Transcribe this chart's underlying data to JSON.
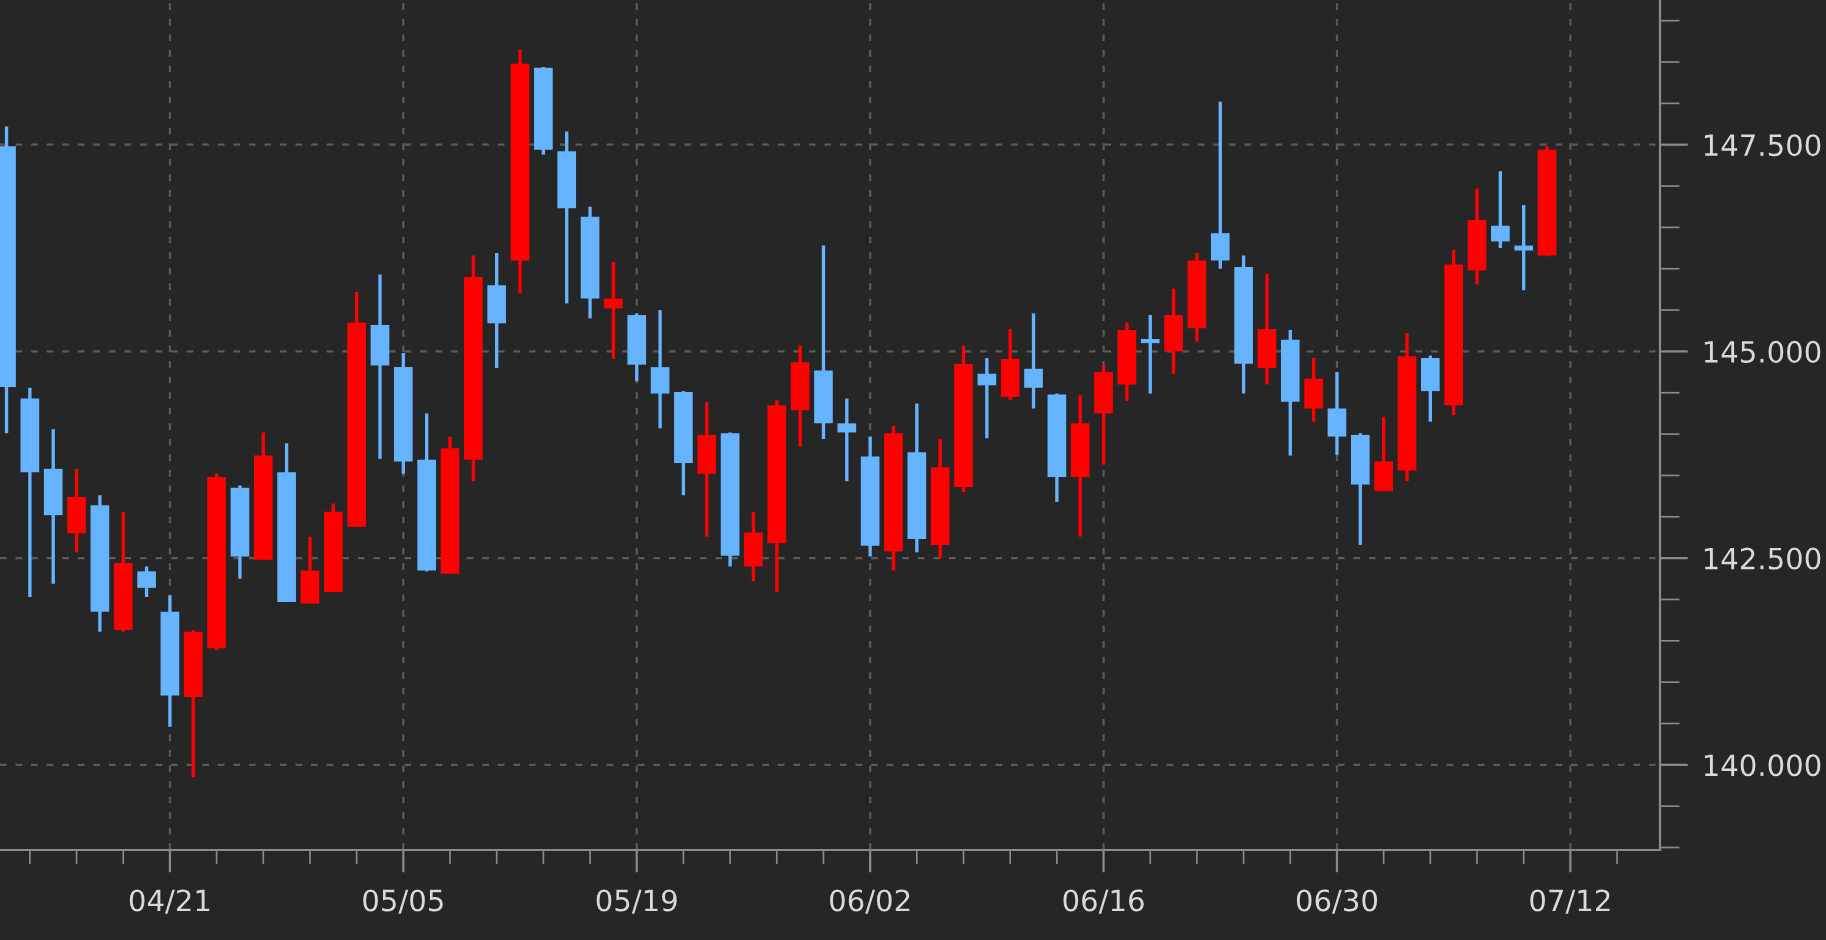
{
  "chart_data": {
    "type": "candlestick",
    "categories": [
      null,
      null,
      null,
      null,
      null,
      null,
      null,
      "04/21",
      null,
      null,
      null,
      null,
      null,
      null,
      null,
      null,
      null,
      "05/05",
      null,
      null,
      null,
      null,
      null,
      null,
      null,
      null,
      null,
      "05/19",
      null,
      null,
      null,
      null,
      null,
      null,
      null,
      null,
      null,
      "06/02",
      null,
      null,
      null,
      null,
      null,
      null,
      null,
      null,
      null,
      "06/16",
      null,
      null,
      null,
      null,
      null,
      null,
      null,
      null,
      null,
      "06/30",
      null,
      null,
      null,
      null,
      null,
      null,
      null,
      null,
      null,
      "07/12"
    ],
    "ohlc": [
      [
        147.48,
        147.72,
        144.01,
        144.57
      ],
      [
        144.43,
        144.56,
        142.03,
        143.54
      ],
      [
        143.58,
        144.06,
        142.19,
        143.02
      ],
      [
        142.8,
        143.58,
        142.57,
        143.24
      ],
      [
        143.14,
        143.26,
        141.61,
        141.85
      ],
      [
        141.63,
        143.06,
        141.61,
        142.44
      ],
      [
        142.34,
        142.4,
        142.03,
        142.14
      ],
      [
        141.85,
        142.05,
        140.46,
        140.84
      ],
      [
        140.82,
        141.63,
        139.85,
        141.61
      ],
      [
        141.41,
        143.52,
        141.39,
        143.48
      ],
      [
        143.35,
        143.38,
        142.25,
        142.52
      ],
      [
        142.48,
        144.02,
        142.48,
        143.74
      ],
      [
        143.54,
        143.89,
        141.97,
        141.97
      ],
      [
        141.95,
        142.76,
        141.95,
        142.35
      ],
      [
        142.09,
        143.16,
        142.09,
        143.06
      ],
      [
        142.88,
        145.72,
        142.88,
        145.35
      ],
      [
        145.32,
        145.93,
        143.7,
        144.83
      ],
      [
        144.81,
        144.98,
        143.52,
        143.67
      ],
      [
        143.69,
        144.25,
        142.34,
        142.35
      ],
      [
        142.31,
        143.97,
        142.31,
        143.83
      ],
      [
        143.69,
        146.16,
        143.43,
        145.9
      ],
      [
        145.8,
        146.19,
        144.8,
        145.34
      ],
      [
        146.1,
        148.65,
        145.7,
        148.48
      ],
      [
        148.43,
        148.44,
        147.38,
        147.44
      ],
      [
        147.42,
        147.66,
        145.58,
        146.73
      ],
      [
        146.63,
        146.75,
        145.4,
        145.64
      ],
      [
        145.52,
        146.08,
        144.91,
        145.64
      ],
      [
        145.44,
        145.46,
        144.64,
        144.84
      ],
      [
        144.81,
        145.5,
        144.07,
        144.49
      ],
      [
        144.51,
        144.52,
        143.26,
        143.65
      ],
      [
        143.52,
        144.39,
        142.76,
        143.99
      ],
      [
        144.01,
        144.02,
        142.4,
        142.53
      ],
      [
        142.4,
        143.06,
        142.22,
        142.81
      ],
      [
        142.68,
        144.41,
        142.09,
        144.35
      ],
      [
        144.29,
        145.07,
        143.85,
        144.87
      ],
      [
        144.77,
        146.28,
        143.94,
        144.13
      ],
      [
        144.13,
        144.43,
        143.43,
        144.02
      ],
      [
        143.73,
        143.97,
        142.52,
        142.65
      ],
      [
        142.58,
        144.1,
        142.35,
        144.01
      ],
      [
        143.78,
        144.37,
        142.57,
        142.73
      ],
      [
        142.66,
        143.94,
        142.5,
        143.6
      ],
      [
        143.36,
        145.07,
        143.3,
        144.85
      ],
      [
        144.73,
        144.92,
        143.95,
        144.59
      ],
      [
        144.45,
        145.27,
        144.41,
        144.91
      ],
      [
        144.79,
        145.46,
        144.31,
        144.56
      ],
      [
        144.48,
        144.49,
        143.18,
        143.48
      ],
      [
        143.48,
        144.47,
        142.76,
        144.13
      ],
      [
        144.25,
        144.83,
        143.63,
        144.75
      ],
      [
        144.6,
        145.35,
        144.4,
        145.26
      ],
      [
        145.15,
        145.44,
        144.49,
        145.1
      ],
      [
        145.0,
        145.76,
        144.73,
        145.44
      ],
      [
        145.28,
        146.19,
        145.12,
        146.1
      ],
      [
        146.43,
        148.02,
        146.0,
        146.1
      ],
      [
        146.02,
        146.16,
        144.49,
        144.85
      ],
      [
        144.8,
        145.94,
        144.6,
        145.27
      ],
      [
        145.14,
        145.26,
        143.74,
        144.39
      ],
      [
        144.31,
        144.92,
        144.15,
        144.67
      ],
      [
        144.31,
        144.75,
        143.75,
        143.97
      ],
      [
        143.99,
        144.01,
        142.66,
        143.39
      ],
      [
        143.31,
        144.21,
        143.31,
        143.67
      ],
      [
        143.56,
        145.22,
        143.43,
        144.94
      ],
      [
        144.92,
        144.95,
        144.15,
        144.52
      ],
      [
        144.35,
        146.23,
        144.23,
        146.05
      ],
      [
        145.98,
        146.97,
        145.81,
        146.59
      ],
      [
        146.52,
        147.18,
        146.25,
        146.33
      ],
      [
        146.28,
        146.77,
        145.74,
        146.22
      ],
      [
        146.16,
        147.48,
        146.15,
        147.44
      ],
      null
    ],
    "colors": [
      "#66b3ff",
      "#66b3ff",
      "#66b3ff",
      "#ff0000",
      "#66b3ff",
      "#ff0000",
      "#66b3ff",
      "#66b3ff",
      "#ff0000",
      "#ff0000",
      "#66b3ff",
      "#ff0000",
      "#66b3ff",
      "#ff0000",
      "#ff0000",
      "#ff0000",
      "#66b3ff",
      "#66b3ff",
      "#66b3ff",
      "#ff0000",
      "#ff0000",
      "#66b3ff",
      "#ff0000",
      "#66b3ff",
      "#66b3ff",
      "#66b3ff",
      "#ff0000",
      "#66b3ff",
      "#66b3ff",
      "#66b3ff",
      "#ff0000",
      "#66b3ff",
      "#ff0000",
      "#ff0000",
      "#ff0000",
      "#66b3ff",
      "#66b3ff",
      "#66b3ff",
      "#ff0000",
      "#66b3ff",
      "#ff0000",
      "#ff0000",
      "#66b3ff",
      "#ff0000",
      "#66b3ff",
      "#66b3ff",
      "#ff0000",
      "#ff0000",
      "#ff0000",
      "#66b3ff",
      "#ff0000",
      "#ff0000",
      "#66b3ff",
      "#66b3ff",
      "#ff0000",
      "#66b3ff",
      "#ff0000",
      "#66b3ff",
      "#66b3ff",
      "#ff0000",
      "#ff0000",
      "#66b3ff",
      "#ff0000",
      "#ff0000",
      "#66b3ff",
      "#66b3ff",
      "#ff0000",
      null
    ],
    "ylim": [
      138.97,
      149.25
    ],
    "yticks": [
      {
        "value": 140,
        "label": "140.000"
      },
      {
        "value": 142.5,
        "label": "142.500"
      },
      {
        "value": 145,
        "label": "145.000"
      },
      {
        "value": 147.5,
        "label": "147.500"
      }
    ],
    "grid": true
  }
}
